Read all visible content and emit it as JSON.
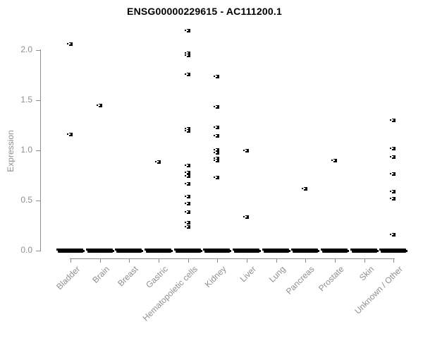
{
  "chart_data": {
    "type": "scatter",
    "subtype": "strip-plot",
    "title": "ENSG00000229615 - AC111200.1",
    "xlabel": "",
    "ylabel": "Expression",
    "ylim": [
      0,
      2.25
    ],
    "yticks": [
      0.0,
      0.5,
      1.0,
      1.5,
      2.0
    ],
    "grid": false,
    "legend": false,
    "marker_color": "#000000",
    "axis_color": "#8c8c8c",
    "tick_text_color": "#8f8f8f",
    "title_color": "#000000",
    "categories": [
      "Bladder",
      "Brain",
      "Breast",
      "Gastric",
      "Hematopoietic cells",
      "Kidney",
      "Liver",
      "Lung",
      "Pancreas",
      "Prostate",
      "Skin",
      "Unknown / Other"
    ],
    "series": [
      {
        "category": "Bladder",
        "points": [
          2.06,
          1.16
        ],
        "zero_cluster": true
      },
      {
        "category": "Brain",
        "points": [
          1.45
        ],
        "zero_cluster": true
      },
      {
        "category": "Breast",
        "points": [],
        "zero_cluster": true
      },
      {
        "category": "Gastric",
        "points": [
          0.89
        ],
        "zero_cluster": true
      },
      {
        "category": "Hematopoietic cells",
        "points": [
          2.2,
          1.97,
          1.95,
          1.76,
          1.22,
          1.2,
          0.85,
          0.78,
          0.75,
          0.67,
          0.54,
          0.47,
          0.39,
          0.28,
          0.24
        ],
        "zero_cluster": true
      },
      {
        "category": "Kidney",
        "points": [
          1.74,
          1.44,
          1.23,
          1.15,
          1.01,
          0.98,
          0.92,
          0.9,
          0.73
        ],
        "zero_cluster": true
      },
      {
        "category": "Liver",
        "points": [
          1.0,
          0.34
        ],
        "zero_cluster": true
      },
      {
        "category": "Lung",
        "points": [],
        "zero_cluster": true
      },
      {
        "category": "Pancreas",
        "points": [
          0.62
        ],
        "zero_cluster": true
      },
      {
        "category": "Prostate",
        "points": [
          0.9
        ],
        "zero_cluster": true
      },
      {
        "category": "Skin",
        "points": [],
        "zero_cluster": true
      },
      {
        "category": "Unknown / Other",
        "points": [
          1.3,
          1.02,
          0.94,
          0.77,
          0.59,
          0.52,
          0.16
        ],
        "zero_cluster": true
      }
    ]
  }
}
